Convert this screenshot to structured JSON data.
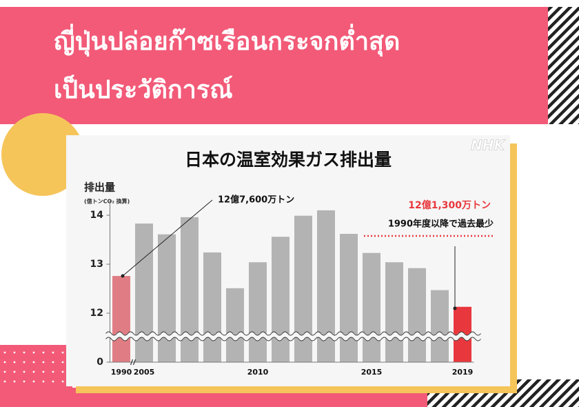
{
  "header": {
    "lines": [
      "ญี่ปุ่นปล่อยก๊าซเรือนกระจกต่ำสุด",
      "เป็นประวัติการณ์"
    ]
  },
  "chart_data": {
    "type": "bar",
    "title": "日本の温室効果ガス排出量",
    "logo": "NHK",
    "y_label": "排出量",
    "y_unit": "(億トンCO₂ 換算)",
    "categories": [
      "1990",
      "2005",
      null,
      null,
      null,
      null,
      "2010",
      null,
      null,
      null,
      null,
      "2015",
      null,
      null,
      null,
      "2019"
    ],
    "values": [
      12.76,
      13.83,
      13.61,
      13.96,
      13.24,
      12.51,
      13.04,
      13.56,
      13.99,
      14.1,
      13.62,
      13.23,
      13.04,
      12.92,
      12.47,
      12.13
    ],
    "colors": [
      "#e07d84",
      "#b3b3b3",
      "#b3b3b3",
      "#b3b3b3",
      "#b3b3b3",
      "#b3b3b3",
      "#b3b3b3",
      "#b3b3b3",
      "#b3b3b3",
      "#b3b3b3",
      "#b3b3b3",
      "#b3b3b3",
      "#b3b3b3",
      "#b3b3b3",
      "#b3b3b3",
      "#e8383d"
    ],
    "ylim": [
      0,
      14.3
    ],
    "yticks": [
      0,
      12,
      13,
      14
    ],
    "axis_break": true,
    "annotations": [
      "12億7,600万トン",
      "12億1,300万トン",
      "1990年度以降で過去最少"
    ]
  }
}
